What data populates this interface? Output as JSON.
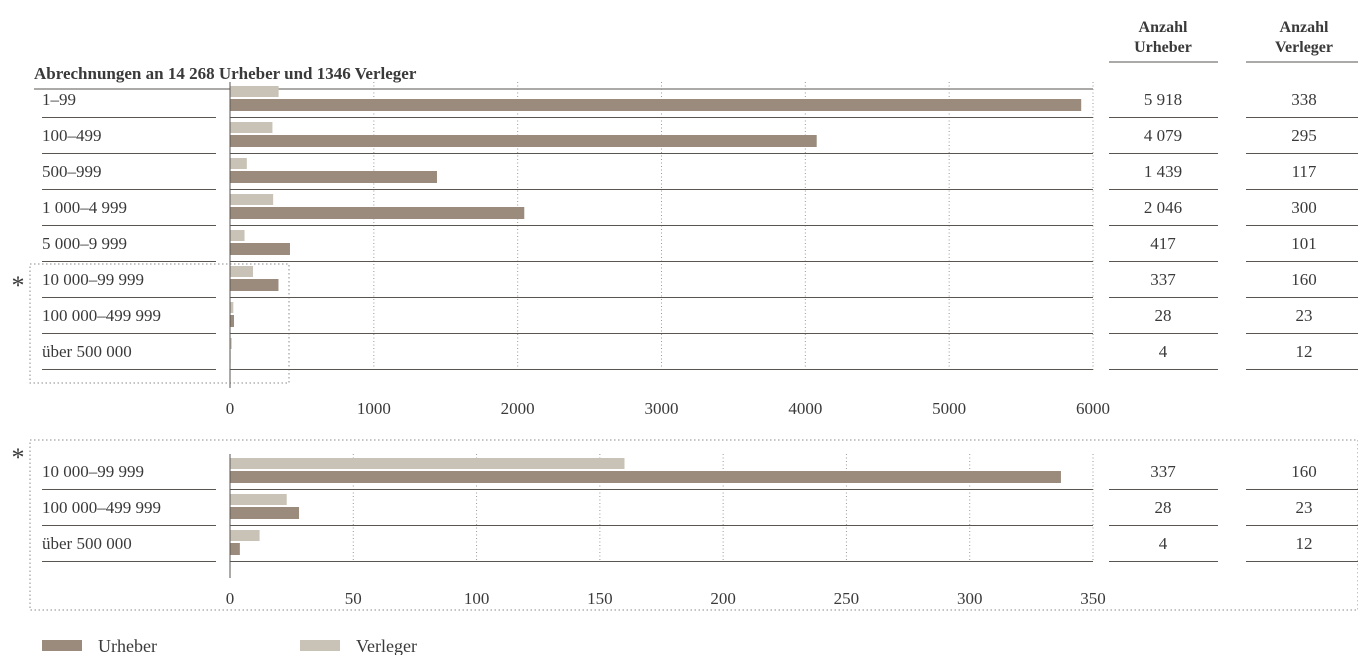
{
  "title": "Abrechnungen an 14 268 Urheber und 1346 Verleger",
  "columns": {
    "urheber_header": [
      "Anzahl",
      "Urheber"
    ],
    "verleger_header": [
      "Anzahl",
      "Verleger"
    ]
  },
  "asterisk": "*",
  "colors": {
    "urheber": "#9a8b7c",
    "verleger": "#c9c2b7",
    "line": "#5a5550",
    "grid": "#999999"
  },
  "legend": {
    "urheber": "Urheber",
    "verleger": "Verleger"
  },
  "chart_data": [
    {
      "type": "bar",
      "orientation": "horizontal",
      "categories": [
        "1–99",
        "100–499",
        "500–999",
        "1 000–4 999",
        "5 000–9 999",
        "10 000–99 999",
        "100 000–499 999",
        "über 500 000"
      ],
      "series": [
        {
          "name": "Urheber",
          "values": [
            5918,
            4079,
            1439,
            2046,
            417,
            337,
            28,
            4
          ]
        },
        {
          "name": "Verleger",
          "values": [
            338,
            295,
            117,
            300,
            101,
            160,
            23,
            12
          ]
        }
      ],
      "urheber_labels": [
        "5 918",
        "4 079",
        "1 439",
        "2 046",
        "417",
        "337",
        "28",
        "4"
      ],
      "verleger_labels": [
        "338",
        "295",
        "117",
        "300",
        "101",
        "160",
        "23",
        "12"
      ],
      "xlim": [
        0,
        6000
      ],
      "xticks": [
        0,
        1000,
        2000,
        3000,
        4000,
        5000,
        6000
      ],
      "grid": true,
      "legend_position": "bottom-left"
    },
    {
      "type": "bar",
      "orientation": "horizontal",
      "categories": [
        "10 000–99 999",
        "100 000–499 999",
        "über 500 000"
      ],
      "series": [
        {
          "name": "Urheber",
          "values": [
            337,
            28,
            4
          ]
        },
        {
          "name": "Verleger",
          "values": [
            160,
            23,
            12
          ]
        }
      ],
      "urheber_labels": [
        "337",
        "28",
        "4"
      ],
      "verleger_labels": [
        "160",
        "23",
        "12"
      ],
      "xlim": [
        0,
        350
      ],
      "xticks": [
        0,
        50,
        100,
        150,
        200,
        250,
        300,
        350
      ],
      "grid": true
    }
  ]
}
